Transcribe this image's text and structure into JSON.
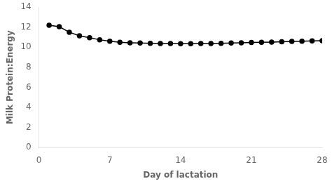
{
  "chart_data": {
    "type": "line",
    "xlabel": "Day of lactation",
    "ylabel": "Milk Protein:Energy",
    "x": [
      1,
      2,
      3,
      4,
      5,
      6,
      7,
      8,
      9,
      10,
      11,
      12,
      13,
      14,
      15,
      16,
      17,
      18,
      19,
      20,
      21,
      22,
      23,
      24,
      25,
      26,
      27,
      28
    ],
    "values": [
      12.2,
      12.05,
      11.5,
      11.15,
      10.95,
      10.75,
      10.6,
      10.5,
      10.45,
      10.42,
      10.4,
      10.38,
      10.37,
      10.36,
      10.36,
      10.37,
      10.38,
      10.4,
      10.42,
      10.45,
      10.48,
      10.5,
      10.52,
      10.55,
      10.58,
      10.6,
      10.63,
      10.65
    ],
    "xlim": [
      0,
      28
    ],
    "ylim": [
      0,
      14
    ],
    "xticks": [
      0,
      7,
      14,
      21,
      28
    ],
    "yticks": [
      0,
      2,
      4,
      6,
      8,
      10,
      12,
      14
    ],
    "color": "#000000",
    "marker": "o",
    "grid": false
  }
}
